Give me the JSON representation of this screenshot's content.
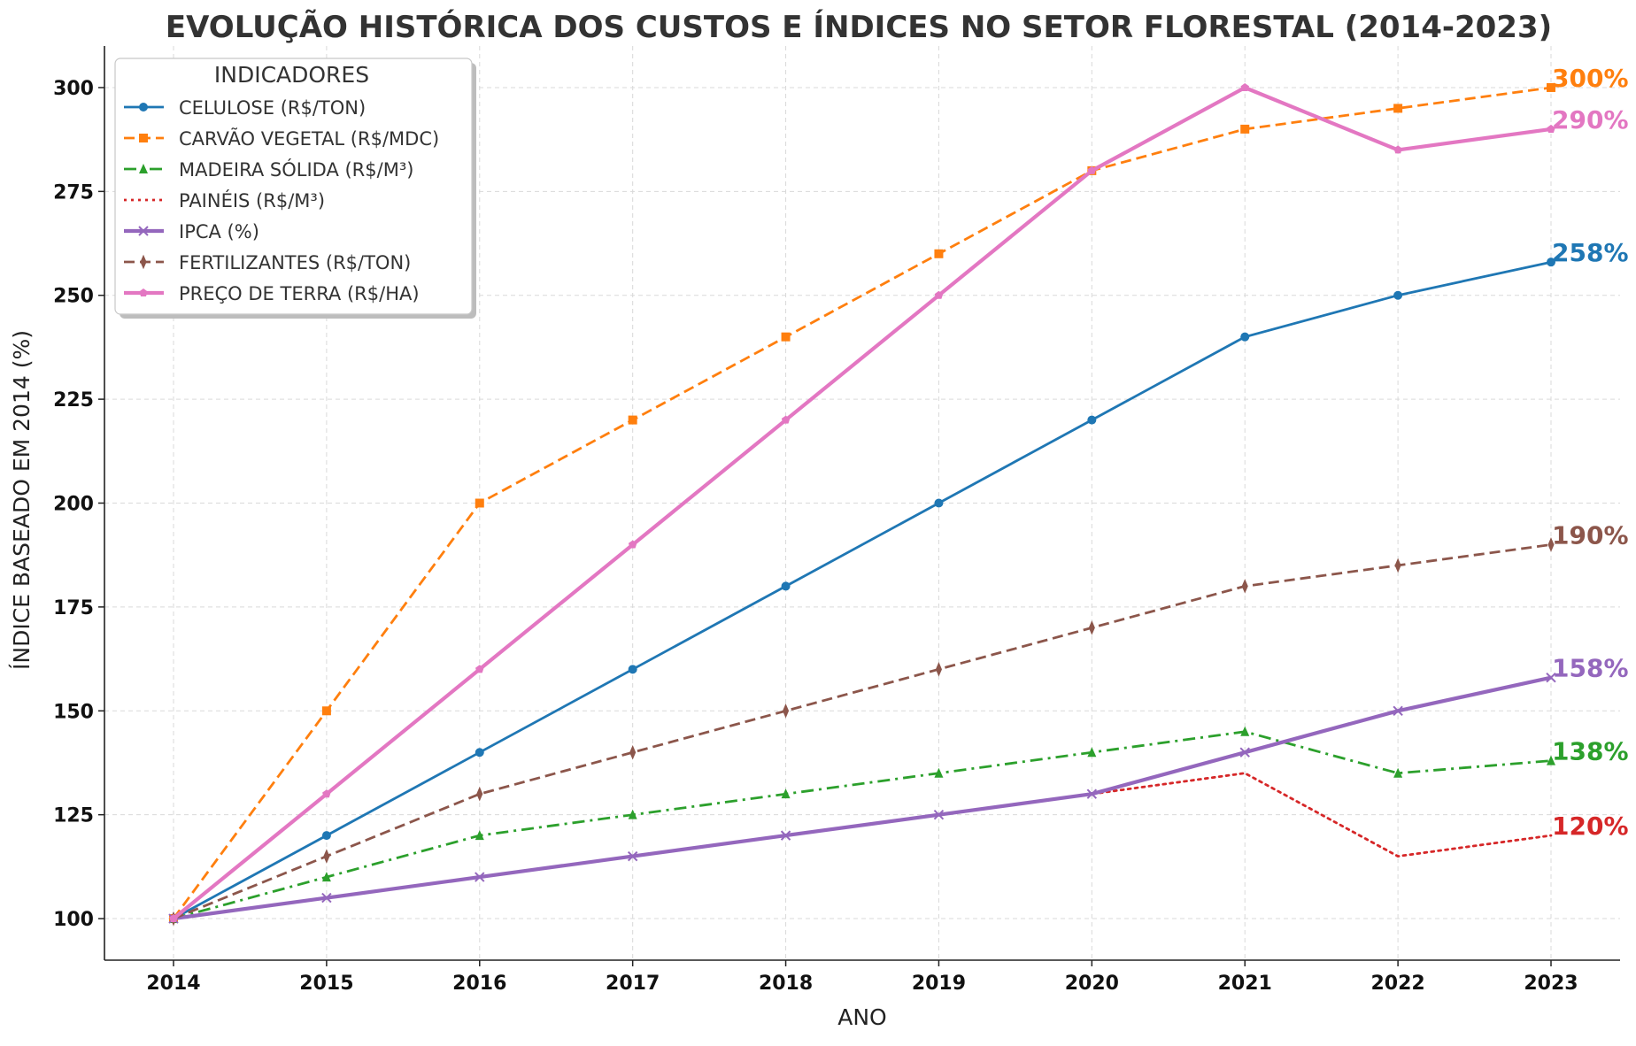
{
  "chart_data": {
    "type": "line",
    "title": "EVOLUÇÃO HISTÓRICA DOS CUSTOS E ÍNDICES NO SETOR FLORESTAL (2014-2023)",
    "xlabel": "ANO",
    "ylabel": "ÍNDICE BASEADO EM 2014 (%)",
    "ylim": [
      90,
      310
    ],
    "yticks": [
      100,
      125,
      150,
      175,
      200,
      225,
      250,
      275,
      300
    ],
    "categories": [
      "2014",
      "2015",
      "2016",
      "2017",
      "2018",
      "2019",
      "2020",
      "2021",
      "2022",
      "2023"
    ],
    "grid": true,
    "legend_title": "INDICADORES",
    "legend_position": "top-left",
    "series": [
      {
        "name": "CELULOSE (R$/TON)",
        "color": "#1f77b4",
        "dash": "solid",
        "marker": "circle",
        "values": [
          100,
          120,
          140,
          160,
          180,
          200,
          220,
          240,
          250,
          258
        ],
        "end_label": "258%"
      },
      {
        "name": "CARVÃO VEGETAL (R$/MDC)",
        "color": "#ff7f0e",
        "dash": "dashed",
        "marker": "square",
        "values": [
          100,
          150,
          200,
          220,
          240,
          260,
          280,
          290,
          295,
          300
        ],
        "end_label": "300%"
      },
      {
        "name": "MADEIRA SÓLIDA (R$/M³)",
        "color": "#2ca02c",
        "dash": "dashdot",
        "marker": "triangle",
        "values": [
          100,
          110,
          120,
          125,
          130,
          135,
          140,
          145,
          135,
          138
        ],
        "end_label": "138%"
      },
      {
        "name": "PAINÉIS (R$/M³)",
        "color": "#d62728",
        "dash": "dotted",
        "marker": "none",
        "values": [
          100,
          105,
          110,
          115,
          120,
          125,
          130,
          135,
          115,
          120
        ],
        "end_label": "120%"
      },
      {
        "name": "IPCA (%)",
        "color": "#9467bd",
        "dash": "solid",
        "marker": "x",
        "values": [
          100,
          105,
          110,
          115,
          120,
          125,
          130,
          140,
          150,
          158
        ],
        "end_label": "158%"
      },
      {
        "name": "FERTILIZANTES (R$/TON)",
        "color": "#8c564b",
        "dash": "dashed",
        "marker": "plus",
        "values": [
          100,
          115,
          130,
          140,
          150,
          160,
          170,
          180,
          185,
          190
        ],
        "end_label": "190%"
      },
      {
        "name": "PREÇO DE TERRA (R$/HA)",
        "color": "#e377c2",
        "dash": "solid",
        "marker": "pentagon",
        "values": [
          100,
          130,
          160,
          190,
          220,
          250,
          280,
          300,
          285,
          290
        ],
        "end_label": "290%"
      }
    ]
  }
}
